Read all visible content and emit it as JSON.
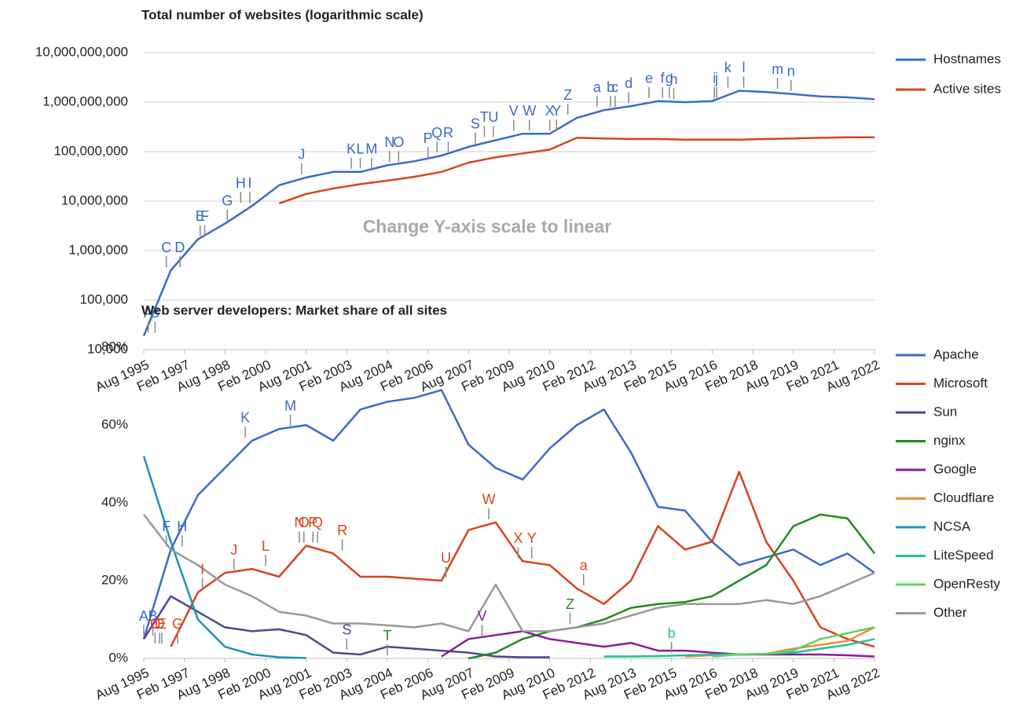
{
  "chart_data": [
    {
      "type": "line",
      "title": "Total number of websites (logarithmic scale)",
      "button": "Change Y-axis scale to linear",
      "yscale": "log",
      "grid": true,
      "x": [
        "1995-08",
        "1996-08",
        "1997-08",
        "1998-08",
        "1999-08",
        "2000-08",
        "2001-08",
        "2002-08",
        "2003-08",
        "2004-08",
        "2005-08",
        "2006-08",
        "2007-08",
        "2008-08",
        "2009-08",
        "2010-08",
        "2011-08",
        "2012-08",
        "2013-08",
        "2014-08",
        "2015-08",
        "2016-08",
        "2017-08",
        "2018-08",
        "2019-08",
        "2020-08",
        "2021-08",
        "2022-08"
      ],
      "xlim": [
        "1995-08",
        "2022-08"
      ],
      "xticks": [
        {
          "value": "1995-08",
          "label": "Aug 1995"
        },
        {
          "value": "1997-02",
          "label": "Feb 1997"
        },
        {
          "value": "1998-08",
          "label": "Aug 1998"
        },
        {
          "value": "2000-02",
          "label": "Feb 2000"
        },
        {
          "value": "2001-08",
          "label": "Aug 2001"
        },
        {
          "value": "2003-02",
          "label": "Feb 2003"
        },
        {
          "value": "2004-08",
          "label": "Aug 2004"
        },
        {
          "value": "2006-02",
          "label": "Feb 2006"
        },
        {
          "value": "2007-08",
          "label": "Aug 2007"
        },
        {
          "value": "2009-02",
          "label": "Feb 2009"
        },
        {
          "value": "2010-08",
          "label": "Aug 2010"
        },
        {
          "value": "2012-02",
          "label": "Feb 2012"
        },
        {
          "value": "2013-08",
          "label": "Aug 2013"
        },
        {
          "value": "2015-02",
          "label": "Feb 2015"
        },
        {
          "value": "2016-08",
          "label": "Aug 2016"
        },
        {
          "value": "2018-02",
          "label": "Feb 2018"
        },
        {
          "value": "2019-08",
          "label": "Aug 2019"
        },
        {
          "value": "2021-02",
          "label": "Feb 2021"
        },
        {
          "value": "2022-08",
          "label": "Aug 2022"
        }
      ],
      "ylim": [
        10000,
        10000000000
      ],
      "yticks": [
        {
          "value": 10000,
          "label": "10,000"
        },
        {
          "value": 100000,
          "label": "100,000"
        },
        {
          "value": 1000000,
          "label": "1,000,000"
        },
        {
          "value": 10000000,
          "label": "10,000,000"
        },
        {
          "value": 100000000,
          "label": "100,000,000"
        },
        {
          "value": 1000000000,
          "label": "1,000,000,000"
        },
        {
          "value": 10000000000,
          "label": "10,000,000,000"
        }
      ],
      "series": [
        {
          "name": "Hostnames",
          "color": "#3a6bc9",
          "values": [
            19000,
            400000,
            1700000,
            3500000,
            8000000,
            21000000,
            30000000,
            39000000,
            39000000,
            53000000,
            64000000,
            83000000,
            125000000,
            170000000,
            230000000,
            230000000,
            480000000,
            690000000,
            830000000,
            1050000000,
            1000000000,
            1050000000,
            1700000000,
            1600000000,
            1450000000,
            1300000000,
            1250000000,
            1150000000
          ]
        },
        {
          "name": "Active sites",
          "color": "#d9441a",
          "values": [
            null,
            null,
            null,
            null,
            null,
            9000000,
            14000000,
            18000000,
            22000000,
            26000000,
            31000000,
            39000000,
            60000000,
            77000000,
            92000000,
            110000000,
            190000000,
            185000000,
            180000000,
            180000000,
            175000000,
            175000000,
            175000000,
            180000000,
            185000000,
            190000000,
            195000000,
            195000000
          ]
        }
      ],
      "annotations": [
        {
          "text": "A",
          "x": "1995-10",
          "series": 0
        },
        {
          "text": "B",
          "x": "1996-01",
          "series": 0
        },
        {
          "text": "C",
          "x": "1996-06",
          "series": 0
        },
        {
          "text": "D",
          "x": "1996-12",
          "series": 0
        },
        {
          "text": "E",
          "x": "1997-09",
          "series": 0
        },
        {
          "text": "F",
          "x": "1997-11",
          "series": 0
        },
        {
          "text": "G",
          "x": "1998-09",
          "series": 0
        },
        {
          "text": "H",
          "x": "1999-03",
          "series": 0
        },
        {
          "text": "I",
          "x": "1999-07",
          "series": 0
        },
        {
          "text": "J",
          "x": "2001-06",
          "series": 0
        },
        {
          "text": "K",
          "x": "2003-04",
          "series": 0
        },
        {
          "text": "L",
          "x": "2003-08",
          "series": 0
        },
        {
          "text": "M",
          "x": "2004-01",
          "series": 0
        },
        {
          "text": "N",
          "x": "2004-09",
          "series": 0
        },
        {
          "text": "O",
          "x": "2005-01",
          "series": 0
        },
        {
          "text": "P",
          "x": "2006-02",
          "series": 0
        },
        {
          "text": "Q",
          "x": "2006-06",
          "series": 0
        },
        {
          "text": "R",
          "x": "2006-11",
          "series": 0
        },
        {
          "text": "S",
          "x": "2007-11",
          "series": 0
        },
        {
          "text": "T",
          "x": "2008-03",
          "series": 0
        },
        {
          "text": "U",
          "x": "2008-07",
          "series": 0
        },
        {
          "text": "V",
          "x": "2009-04",
          "series": 0
        },
        {
          "text": "W",
          "x": "2009-11",
          "series": 0
        },
        {
          "text": "X",
          "x": "2010-08",
          "series": 0
        },
        {
          "text": "Y",
          "x": "2010-11",
          "series": 0
        },
        {
          "text": "Z",
          "x": "2011-04",
          "series": 0
        },
        {
          "text": "a",
          "x": "2012-05",
          "series": 0
        },
        {
          "text": "b",
          "x": "2012-11",
          "series": 0
        },
        {
          "text": "c",
          "x": "2013-01",
          "series": 0
        },
        {
          "text": "d",
          "x": "2013-07",
          "series": 0
        },
        {
          "text": "e",
          "x": "2014-04",
          "series": 0
        },
        {
          "text": "f",
          "x": "2014-10",
          "series": 0
        },
        {
          "text": "g",
          "x": "2015-01",
          "series": 0
        },
        {
          "text": "h",
          "x": "2015-03",
          "series": 0
        },
        {
          "text": "i",
          "x": "2016-09",
          "series": 0
        },
        {
          "text": "j",
          "x": "2016-10",
          "series": 0
        },
        {
          "text": "k",
          "x": "2017-03",
          "series": 0
        },
        {
          "text": "l",
          "x": "2017-10",
          "series": 0
        },
        {
          "text": "m",
          "x": "2019-01",
          "series": 0
        },
        {
          "text": "n",
          "x": "2019-07",
          "series": 0
        }
      ]
    },
    {
      "type": "line",
      "title": "Web server developers: Market share of all sites",
      "grid": false,
      "x": [
        "1995-08",
        "1996-08",
        "1997-08",
        "1998-08",
        "1999-08",
        "2000-08",
        "2001-08",
        "2002-08",
        "2003-08",
        "2004-08",
        "2005-08",
        "2006-08",
        "2007-08",
        "2008-08",
        "2009-08",
        "2010-08",
        "2011-08",
        "2012-08",
        "2013-08",
        "2014-08",
        "2015-08",
        "2016-08",
        "2017-08",
        "2018-08",
        "2019-08",
        "2020-08",
        "2021-08",
        "2022-08"
      ],
      "xlim": [
        "1995-08",
        "2022-08"
      ],
      "xticks": [
        {
          "value": "1995-08",
          "label": "Aug 1995"
        },
        {
          "value": "1997-02",
          "label": "Feb 1997"
        },
        {
          "value": "1998-08",
          "label": "Aug 1998"
        },
        {
          "value": "2000-02",
          "label": "Feb 2000"
        },
        {
          "value": "2001-08",
          "label": "Aug 2001"
        },
        {
          "value": "2003-02",
          "label": "Feb 2003"
        },
        {
          "value": "2004-08",
          "label": "Aug 2004"
        },
        {
          "value": "2006-02",
          "label": "Feb 2006"
        },
        {
          "value": "2007-08",
          "label": "Aug 2007"
        },
        {
          "value": "2009-02",
          "label": "Feb 2009"
        },
        {
          "value": "2010-08",
          "label": "Aug 2010"
        },
        {
          "value": "2012-02",
          "label": "Feb 2012"
        },
        {
          "value": "2013-08",
          "label": "Aug 2013"
        },
        {
          "value": "2015-02",
          "label": "Feb 2015"
        },
        {
          "value": "2016-08",
          "label": "Aug 2016"
        },
        {
          "value": "2018-02",
          "label": "Feb 2018"
        },
        {
          "value": "2019-08",
          "label": "Aug 2019"
        },
        {
          "value": "2021-02",
          "label": "Feb 2021"
        },
        {
          "value": "2022-08",
          "label": "Aug 2022"
        }
      ],
      "ylim": [
        0,
        80
      ],
      "yticks": [
        {
          "value": 0,
          "label": "0%"
        },
        {
          "value": 20,
          "label": "20%"
        },
        {
          "value": 40,
          "label": "40%"
        },
        {
          "value": 60,
          "label": "60%"
        },
        {
          "value": 80,
          "label": "80%"
        }
      ],
      "series": [
        {
          "name": "Apache",
          "color": "#3a6bc9",
          "values": [
            5,
            28,
            42,
            49,
            56,
            59,
            60,
            56,
            64,
            66,
            67,
            69,
            55,
            49,
            46,
            54,
            60,
            64,
            53,
            39,
            38,
            30,
            24,
            26,
            28,
            24,
            27,
            22
          ]
        },
        {
          "name": "Microsoft",
          "color": "#d9441a",
          "values": [
            null,
            3,
            17,
            22,
            23,
            21,
            29,
            27,
            21,
            21,
            20.5,
            20,
            33,
            35,
            25,
            24,
            18,
            14,
            20,
            34,
            28,
            30,
            48,
            30,
            20,
            8,
            5,
            3
          ]
        },
        {
          "name": "Sun",
          "color": "#4b4a8c",
          "values": [
            5,
            16,
            12,
            8,
            7,
            7.5,
            6,
            1.5,
            1,
            3,
            2.5,
            2,
            1.5,
            0.5,
            0.3,
            0.3,
            null,
            null,
            null,
            null,
            null,
            null,
            null,
            null,
            null,
            null,
            null,
            null
          ]
        },
        {
          "name": "nginx",
          "color": "#1e8c1e",
          "values": [
            null,
            null,
            null,
            null,
            null,
            null,
            null,
            null,
            null,
            null,
            null,
            null,
            0,
            1.5,
            5,
            7,
            8,
            10,
            13,
            14,
            14.5,
            16,
            20,
            24,
            34,
            37,
            36,
            27
          ]
        },
        {
          "name": "Google",
          "color": "#8b1a9e",
          "values": [
            null,
            null,
            null,
            null,
            null,
            null,
            null,
            null,
            null,
            null,
            null,
            0.5,
            5,
            6,
            7,
            5,
            4,
            3,
            4,
            2,
            2,
            1.5,
            1,
            1,
            1,
            1,
            0.8,
            0.5
          ]
        },
        {
          "name": "Cloudflare",
          "color": "#f08a30",
          "values": [
            null,
            null,
            null,
            null,
            null,
            null,
            null,
            null,
            null,
            null,
            null,
            null,
            null,
            null,
            null,
            null,
            null,
            null,
            null,
            null,
            0.5,
            0.8,
            1,
            1.2,
            2.5,
            3.5,
            4.5,
            8
          ]
        },
        {
          "name": "NCSA",
          "color": "#1a93b8",
          "values": [
            52,
            30,
            10,
            3,
            1,
            0.3,
            0.1,
            null,
            null,
            null,
            null,
            null,
            null,
            null,
            null,
            null,
            null,
            null,
            null,
            null,
            null,
            null,
            null,
            null,
            null,
            null,
            null,
            null
          ]
        },
        {
          "name": "LiteSpeed",
          "color": "#20c0a0",
          "values": [
            null,
            null,
            null,
            null,
            null,
            null,
            null,
            null,
            null,
            null,
            null,
            null,
            null,
            null,
            null,
            null,
            null,
            0.5,
            0.5,
            0.6,
            0.8,
            1,
            1,
            1.2,
            1.5,
            2.5,
            3.5,
            5
          ]
        },
        {
          "name": "OpenResty",
          "color": "#5dd35d",
          "values": [
            null,
            null,
            null,
            null,
            null,
            null,
            null,
            null,
            null,
            null,
            null,
            null,
            null,
            null,
            null,
            null,
            null,
            null,
            null,
            null,
            null,
            0.5,
            1,
            1.2,
            2,
            5,
            6.5,
            8
          ]
        },
        {
          "name": "Other",
          "color": "#999999",
          "values": [
            37,
            28,
            24,
            19,
            16,
            12,
            11,
            9,
            9,
            8.5,
            8,
            9,
            7,
            19,
            7,
            7,
            8,
            9,
            11,
            13,
            14,
            14,
            14,
            15,
            14,
            16,
            19,
            22
          ]
        }
      ],
      "annotations": [
        {
          "text": "A",
          "x": "1995-08",
          "series": 0
        },
        {
          "text": "B",
          "x": "1995-12",
          "series": 0
        },
        {
          "text": "C",
          "x": "1996-01",
          "series": 1
        },
        {
          "text": "D",
          "x": "1996-03",
          "series": 1
        },
        {
          "text": "E",
          "x": "1996-04",
          "series": 1
        },
        {
          "text": "F",
          "x": "1996-06",
          "series": 0
        },
        {
          "text": "G",
          "x": "1996-11",
          "series": 1
        },
        {
          "text": "H",
          "x": "1997-01",
          "series": 0
        },
        {
          "text": "I",
          "x": "1997-10",
          "series": 1
        },
        {
          "text": "J",
          "x": "1998-12",
          "series": 1
        },
        {
          "text": "K",
          "x": "1999-05",
          "series": 0
        },
        {
          "text": "L",
          "x": "2000-02",
          "series": 1
        },
        {
          "text": "M",
          "x": "2001-01",
          "series": 0
        },
        {
          "text": "N",
          "x": "2001-05",
          "series": 1
        },
        {
          "text": "O",
          "x": "2001-07",
          "series": 1
        },
        {
          "text": "P",
          "x": "2001-11",
          "series": 1
        },
        {
          "text": "Q",
          "x": "2002-01",
          "series": 1
        },
        {
          "text": "R",
          "x": "2002-12",
          "series": 1
        },
        {
          "text": "S",
          "x": "2003-02",
          "series": 2
        },
        {
          "text": "T",
          "x": "2004-08",
          "series": 3
        },
        {
          "text": "U",
          "x": "2006-10",
          "series": 1
        },
        {
          "text": "V",
          "x": "2008-02",
          "series": 4
        },
        {
          "text": "W",
          "x": "2008-05",
          "series": 1
        },
        {
          "text": "X",
          "x": "2009-06",
          "series": 1
        },
        {
          "text": "Y",
          "x": "2009-12",
          "series": 1
        },
        {
          "text": "Z",
          "x": "2011-05",
          "series": 3
        },
        {
          "text": "a",
          "x": "2011-11",
          "series": 1
        },
        {
          "text": "b",
          "x": "2015-02",
          "series": 7
        }
      ]
    }
  ]
}
